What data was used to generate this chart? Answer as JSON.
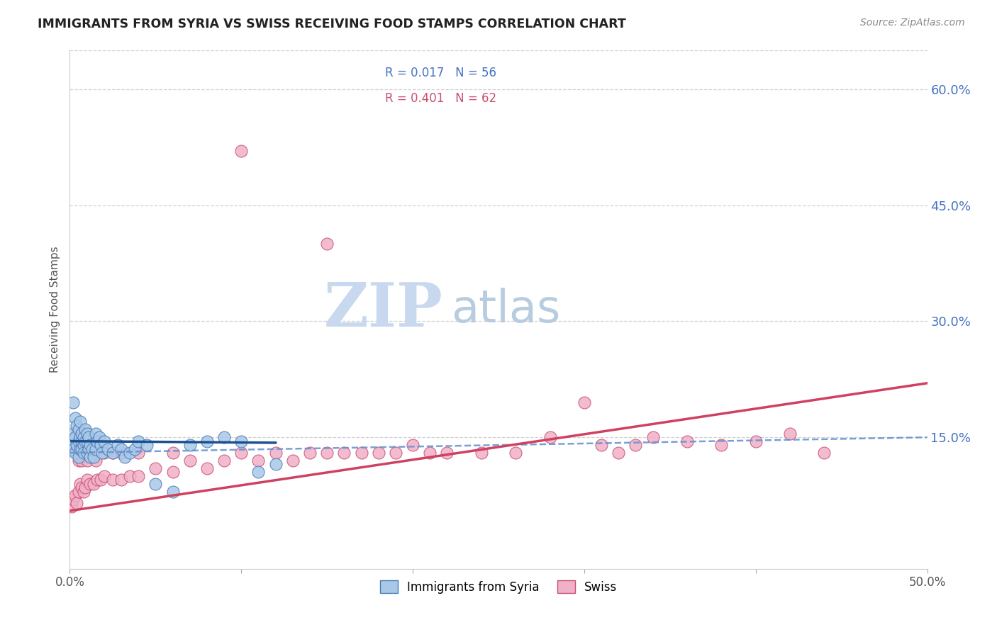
{
  "title": "IMMIGRANTS FROM SYRIA VS SWISS RECEIVING FOOD STAMPS CORRELATION CHART",
  "source": "Source: ZipAtlas.com",
  "ylabel": "Receiving Food Stamps",
  "watermark_zip": "ZIP",
  "watermark_atlas": "atlas",
  "xlim": [
    0.0,
    0.5
  ],
  "ylim": [
    -0.02,
    0.65
  ],
  "x_tick_positions": [
    0.0,
    0.1,
    0.2,
    0.3,
    0.4,
    0.5
  ],
  "x_tick_labels": [
    "0.0%",
    "",
    "",
    "",
    "",
    "50.0%"
  ],
  "y_tick_positions": [
    0.15,
    0.3,
    0.45,
    0.6
  ],
  "y_tick_labels": [
    "15.0%",
    "30.0%",
    "45.0%",
    "60.0%"
  ],
  "legend_syria_label": "Immigrants from Syria",
  "legend_swiss_label": "Swiss",
  "legend_R_syria": "R = 0.017",
  "legend_N_syria": "N = 56",
  "legend_R_swiss": "R = 0.401",
  "legend_N_swiss": "N = 62",
  "syria_color": "#a8c8e8",
  "syria_edge_color": "#4a7ab5",
  "swiss_color": "#f0b0c8",
  "swiss_edge_color": "#c85070",
  "trend_syria_solid_color": "#1a5090",
  "trend_syria_dash_color": "#6090d0",
  "trend_swiss_color": "#d04060",
  "grid_color": "#cccccc",
  "right_tick_color": "#4472c4",
  "watermark_zip_color": "#c8d8ee",
  "watermark_atlas_color": "#b8cce0",
  "title_color": "#222222",
  "syria_x": [
    0.001,
    0.002,
    0.002,
    0.002,
    0.003,
    0.003,
    0.003,
    0.004,
    0.004,
    0.005,
    0.005,
    0.005,
    0.006,
    0.006,
    0.006,
    0.007,
    0.007,
    0.007,
    0.008,
    0.008,
    0.008,
    0.009,
    0.009,
    0.01,
    0.01,
    0.01,
    0.011,
    0.011,
    0.012,
    0.012,
    0.013,
    0.014,
    0.015,
    0.015,
    0.016,
    0.017,
    0.018,
    0.019,
    0.02,
    0.022,
    0.025,
    0.028,
    0.03,
    0.032,
    0.035,
    0.038,
    0.04,
    0.045,
    0.05,
    0.06,
    0.07,
    0.08,
    0.09,
    0.1,
    0.11,
    0.12
  ],
  "syria_y": [
    0.145,
    0.155,
    0.195,
    0.135,
    0.15,
    0.13,
    0.175,
    0.14,
    0.165,
    0.145,
    0.125,
    0.16,
    0.135,
    0.15,
    0.17,
    0.145,
    0.155,
    0.135,
    0.14,
    0.13,
    0.15,
    0.145,
    0.16,
    0.13,
    0.145,
    0.155,
    0.135,
    0.15,
    0.125,
    0.14,
    0.135,
    0.125,
    0.155,
    0.135,
    0.145,
    0.15,
    0.14,
    0.13,
    0.145,
    0.135,
    0.13,
    0.14,
    0.135,
    0.125,
    0.13,
    0.135,
    0.145,
    0.14,
    0.09,
    0.08,
    0.14,
    0.145,
    0.15,
    0.145,
    0.105,
    0.115
  ],
  "swiss_x": [
    0.001,
    0.002,
    0.003,
    0.004,
    0.005,
    0.006,
    0.007,
    0.008,
    0.009,
    0.01,
    0.012,
    0.014,
    0.016,
    0.018,
    0.02,
    0.025,
    0.03,
    0.035,
    0.04,
    0.05,
    0.06,
    0.07,
    0.08,
    0.09,
    0.1,
    0.11,
    0.12,
    0.13,
    0.14,
    0.15,
    0.16,
    0.17,
    0.18,
    0.19,
    0.2,
    0.21,
    0.22,
    0.24,
    0.26,
    0.28,
    0.3,
    0.31,
    0.32,
    0.33,
    0.34,
    0.36,
    0.38,
    0.4,
    0.42,
    0.44,
    0.003,
    0.005,
    0.007,
    0.01,
    0.015,
    0.02,
    0.025,
    0.03,
    0.04,
    0.06,
    0.1,
    0.15
  ],
  "swiss_y": [
    0.06,
    0.07,
    0.075,
    0.065,
    0.08,
    0.09,
    0.085,
    0.08,
    0.085,
    0.095,
    0.09,
    0.09,
    0.095,
    0.095,
    0.1,
    0.095,
    0.095,
    0.1,
    0.1,
    0.11,
    0.105,
    0.12,
    0.11,
    0.12,
    0.13,
    0.12,
    0.13,
    0.12,
    0.13,
    0.13,
    0.13,
    0.13,
    0.13,
    0.13,
    0.14,
    0.13,
    0.13,
    0.13,
    0.13,
    0.15,
    0.195,
    0.14,
    0.13,
    0.14,
    0.15,
    0.145,
    0.14,
    0.145,
    0.155,
    0.13,
    0.135,
    0.12,
    0.12,
    0.12,
    0.12,
    0.13,
    0.13,
    0.13,
    0.13,
    0.13,
    0.52,
    0.4
  ],
  "trend_syria_x_start": 0.001,
  "trend_syria_x_end": 0.12,
  "trend_syria_y_start": 0.145,
  "trend_syria_y_end": 0.143,
  "trend_dash_x_start": 0.0,
  "trend_dash_x_end": 0.5,
  "trend_dash_y_start": 0.13,
  "trend_dash_y_end": 0.15,
  "trend_swiss_x_start": 0.0,
  "trend_swiss_x_end": 0.5,
  "trend_swiss_y_start": 0.055,
  "trend_swiss_y_end": 0.22
}
